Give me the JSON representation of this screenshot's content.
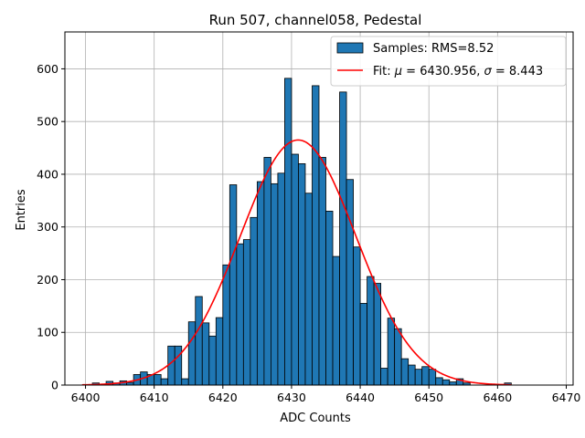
{
  "chart_data": {
    "type": "bar",
    "title": "Run 507, channel058, Pedestal",
    "xlabel": "ADC Counts",
    "ylabel": "Entries",
    "xlim": [
      6397,
      6471
    ],
    "ylim": [
      0,
      670
    ],
    "xticks": [
      6400,
      6410,
      6420,
      6430,
      6440,
      6450,
      6460,
      6470
    ],
    "yticks": [
      0,
      100,
      200,
      300,
      400,
      500,
      600
    ],
    "grid": true,
    "legend_position": "top-right",
    "bin_width": 1,
    "histogram": {
      "name": "Samples: RMS=8.52",
      "color": "#1f77b4",
      "bin_starts": [
        6400,
        6401,
        6402,
        6403,
        6404,
        6405,
        6406,
        6407,
        6408,
        6409,
        6410,
        6411,
        6412,
        6413,
        6414,
        6415,
        6416,
        6417,
        6418,
        6419,
        6420,
        6421,
        6422,
        6423,
        6424,
        6425,
        6426,
        6427,
        6428,
        6429,
        6430,
        6431,
        6432,
        6433,
        6434,
        6435,
        6436,
        6437,
        6438,
        6439,
        6440,
        6441,
        6442,
        6443,
        6444,
        6445,
        6446,
        6447,
        6448,
        6449,
        6450,
        6451,
        6452,
        6453,
        6454,
        6455,
        6456,
        6457,
        6458,
        6459,
        6460,
        6461
      ],
      "counts": [
        0,
        4,
        0,
        7,
        4,
        8,
        5,
        20,
        25,
        20,
        20,
        12,
        74,
        74,
        12,
        120,
        168,
        118,
        93,
        128,
        228,
        380,
        268,
        276,
        318,
        386,
        432,
        382,
        402,
        582,
        438,
        420,
        364,
        568,
        432,
        330,
        244,
        556,
        390,
        262,
        155,
        206,
        193,
        32,
        127,
        107,
        50,
        38,
        30,
        35,
        30,
        14,
        10,
        6,
        12,
        4,
        0,
        0,
        0,
        0,
        0,
        4
      ]
    },
    "fit": {
      "name": "Fit: μ = 6430.956, σ = 8.443",
      "mu": 6430.956,
      "sigma": 8.443,
      "amplitude": 465,
      "x_range": [
        6399.5,
        6462
      ],
      "color": "#ff0000"
    },
    "legend": {
      "samples_prefix": "Samples: RMS=8.52",
      "fit_prefix": "Fit: ",
      "mu_symbol": "μ",
      "mu_text": " = 6430.956, ",
      "sigma_symbol": "σ",
      "sigma_text": " = 8.443"
    }
  }
}
